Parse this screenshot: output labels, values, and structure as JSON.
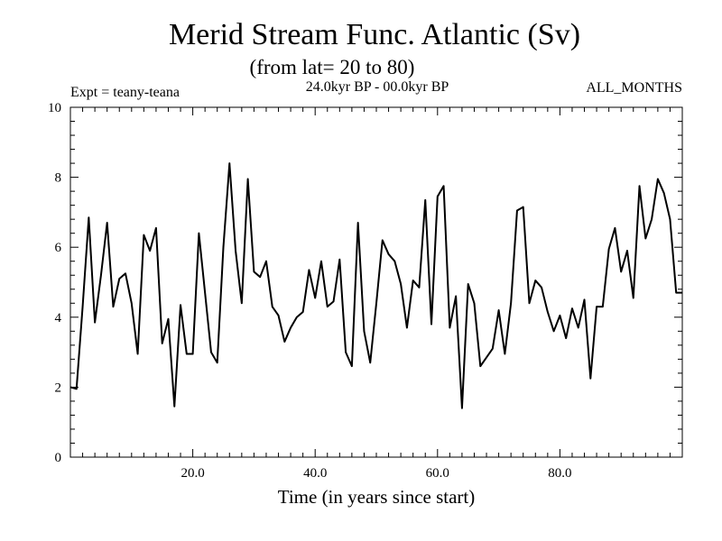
{
  "chart_data": {
    "type": "line",
    "title": "Merid Stream Func. Atlantic (Sv)",
    "subtitle": "(from lat= 20 to 80)",
    "experiment": "Expt = teany-teana",
    "period": "24.0kyr BP - 00.0kyr BP",
    "months": "ALL_MONTHS",
    "xlabel": "Time (in years since start)",
    "ylabel": "",
    "xlim": [
      0,
      100
    ],
    "ylim": [
      0,
      10
    ],
    "xticks": [
      {
        "value": 20,
        "label": "20.0"
      },
      {
        "value": 40,
        "label": "40.0"
      },
      {
        "value": 60,
        "label": "60.0"
      },
      {
        "value": 80,
        "label": "80.0"
      }
    ],
    "yticks": [
      {
        "value": 0,
        "label": "0"
      },
      {
        "value": 2,
        "label": "2"
      },
      {
        "value": 4,
        "label": "4"
      },
      {
        "value": 6,
        "label": "6"
      },
      {
        "value": 8,
        "label": "8"
      },
      {
        "value": 10,
        "label": "10"
      }
    ],
    "x": [
      0,
      1,
      2,
      3,
      4,
      5,
      6,
      7,
      8,
      9,
      10,
      11,
      12,
      13,
      14,
      15,
      16,
      17,
      18,
      19,
      20,
      21,
      22,
      23,
      24,
      25,
      26,
      27,
      28,
      29,
      30,
      31,
      32,
      33,
      34,
      35,
      36,
      37,
      38,
      39,
      40,
      41,
      42,
      43,
      44,
      45,
      46,
      47,
      48,
      49,
      50,
      51,
      52,
      53,
      54,
      55,
      56,
      57,
      58,
      59,
      60,
      61,
      62,
      63,
      64,
      65,
      66,
      67,
      68,
      69,
      70,
      71,
      72,
      73,
      74,
      75,
      76,
      77,
      78,
      79,
      80,
      81,
      82,
      83,
      84,
      85,
      86,
      87,
      88,
      89,
      90,
      91,
      92,
      93,
      94,
      95,
      96,
      97,
      98,
      99,
      100
    ],
    "series": [
      {
        "name": "Merid Stream Func.",
        "color": "#000000",
        "values": [
          2.0,
          1.95,
          4.3,
          6.85,
          3.85,
          5.2,
          6.7,
          4.3,
          5.1,
          5.25,
          4.4,
          2.95,
          6.35,
          5.9,
          6.55,
          3.25,
          3.95,
          1.45,
          4.35,
          2.95,
          2.95,
          6.4,
          4.7,
          3.0,
          2.7,
          6.0,
          8.4,
          5.9,
          4.4,
          7.95,
          5.3,
          5.15,
          5.6,
          4.3,
          4.05,
          3.3,
          3.7,
          4.0,
          4.15,
          5.35,
          4.55,
          5.6,
          4.3,
          4.45,
          5.65,
          3.0,
          2.6,
          6.7,
          3.6,
          2.7,
          4.4,
          6.2,
          5.8,
          5.6,
          4.95,
          3.7,
          5.05,
          4.85,
          7.35,
          3.8,
          7.45,
          7.75,
          3.7,
          4.6,
          1.4,
          4.95,
          4.4,
          2.6,
          2.85,
          3.1,
          4.2,
          2.95,
          4.4,
          7.05,
          7.15,
          4.4,
          5.05,
          4.85,
          4.15,
          3.6,
          4.05,
          3.4,
          4.25,
          3.7,
          4.5,
          2.25,
          4.3,
          4.3,
          5.95,
          6.55,
          5.3,
          5.9,
          4.55,
          7.75,
          6.25,
          6.8,
          7.95,
          7.55,
          6.8,
          4.7,
          4.7
        ]
      }
    ]
  }
}
